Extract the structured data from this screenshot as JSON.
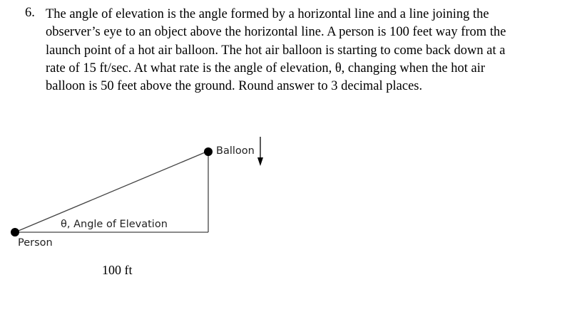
{
  "problem": {
    "number": "6.",
    "lines": [
      "The angle of elevation is the angle formed by a horizontal line and a line joining the",
      "observer’s eye to an object above the horizontal line. A person is 100 feet way from the",
      "launch point of a hot air balloon. The hot air balloon is starting to come back down at a",
      "rate of 15 ft/sec. At what rate is the angle of elevation, θ, changing when the hot air",
      "balloon is 50 feet above the ground. Round answer to 3 decimal places."
    ]
  },
  "diagram": {
    "balloon_label": "Balloon",
    "person_label": "Person",
    "angle_label": "θ, Angle of Elevation",
    "distance_label": "100 ft",
    "arrow_icon": "down-arrow-icon"
  }
}
